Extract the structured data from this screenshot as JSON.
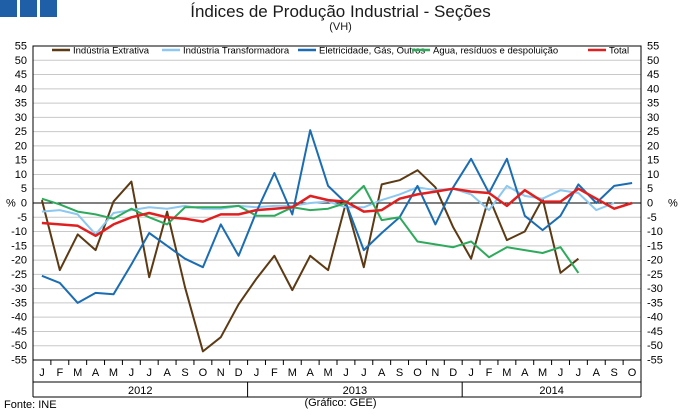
{
  "header": {
    "title": "Índices de Produção Industrial - Seções",
    "subtitle": "(VH)"
  },
  "footer": {
    "source": "Fonte: INE",
    "credit": "(Gráfico: GEE)"
  },
  "colors": {
    "logo": "#1f5fa8",
    "grid": "#c8c8c8",
    "axis": "#000000"
  },
  "chart_data": {
    "type": "line",
    "title": "Índices de Produção Industrial - Seções",
    "subtitle": "(VH)",
    "ylabel_left": "%",
    "ylabel_right": "%",
    "ylim": [
      -55,
      55
    ],
    "yticks": [
      55,
      50,
      45,
      40,
      35,
      30,
      25,
      20,
      15,
      10,
      5,
      0,
      -5,
      -10,
      -15,
      -20,
      -25,
      -30,
      -35,
      -40,
      -45,
      -50,
      -55
    ],
    "grid": true,
    "legend_position": "top",
    "x": [
      "J",
      "F",
      "M",
      "A",
      "M",
      "J",
      "J",
      "A",
      "S",
      "O",
      "N",
      "D",
      "J",
      "F",
      "M",
      "A",
      "M",
      "J",
      "J",
      "A",
      "S",
      "O",
      "N",
      "D",
      "J",
      "F",
      "M",
      "A",
      "M",
      "J",
      "J",
      "A",
      "S",
      "O"
    ],
    "years": [
      {
        "label": "2012",
        "start": 0,
        "end": 11
      },
      {
        "label": "2013",
        "start": 12,
        "end": 23
      },
      {
        "label": "2014",
        "start": 24,
        "end": 33
      }
    ],
    "series": [
      {
        "name": "Indústria Extrativa",
        "color": "#5c3a14",
        "values": [
          1,
          -23.5,
          -11,
          -16.5,
          0.5,
          7.5,
          -26,
          -3,
          -29.5,
          -52,
          -47,
          -35.5,
          -26.5,
          -18.5,
          -30.5,
          -18.5,
          -23.5,
          0,
          -22.5,
          6.5,
          8,
          11.5,
          5.5,
          -8.5,
          -19.5,
          2,
          -13,
          -10,
          1.5,
          -24.5,
          -19.5,
          null,
          null,
          null
        ]
      },
      {
        "name": "Indústria Transformadora",
        "color": "#8cc8f0",
        "values": [
          -3,
          -2.5,
          -4,
          -11,
          -3.5,
          -2.5,
          -1.5,
          -2,
          -1,
          -2,
          -2,
          -1,
          -1.5,
          -1,
          -1,
          0,
          0.5,
          -1.5,
          -1.5,
          1,
          3,
          5.5,
          4.5,
          5,
          3,
          -2.5,
          6,
          2.5,
          1.5,
          4.5,
          3.5,
          -2.5,
          0,
          null
        ]
      },
      {
        "name": "Eletricidade, Gás, Outros",
        "color": "#1b6db3",
        "values": [
          -25.5,
          -28,
          -35,
          -31.5,
          -32,
          -21.5,
          -10.5,
          -15,
          -19.5,
          -22.5,
          -7.5,
          -18.5,
          -3,
          10.5,
          -4,
          25.5,
          6,
          0,
          -16.5,
          -10.5,
          -5,
          6,
          -7.5,
          5.5,
          15.5,
          3.5,
          15.5,
          -4.5,
          -9.5,
          -4.5,
          6.5,
          0,
          6,
          7
        ]
      },
      {
        "name": "Água, resíduos e despoluição",
        "color": "#2eaa5c",
        "values": [
          1.5,
          -0.5,
          -3,
          -4,
          -5.5,
          -2,
          -5,
          -7.5,
          -1.5,
          -1.5,
          -1.5,
          -1,
          -4.5,
          -4.5,
          -1.5,
          -2.5,
          -2,
          0,
          6,
          -6,
          -5,
          -13.5,
          -14.5,
          -15.5,
          -13.5,
          -19,
          -15.5,
          -16.5,
          -17.5,
          -15.5,
          -24.5,
          null,
          null,
          null
        ]
      },
      {
        "name": "Total",
        "color": "#e02020",
        "values": [
          -7,
          -7.5,
          -8,
          -11.5,
          -7.5,
          -5,
          -3.5,
          -5,
          -5.5,
          -6.5,
          -4,
          -4,
          -2.5,
          -2,
          -1.5,
          2.5,
          1,
          0.5,
          -3,
          -2.5,
          1.5,
          3,
          4,
          5,
          4,
          3.5,
          -1,
          4.5,
          0.5,
          0.5,
          5,
          1.5,
          -2,
          0
        ]
      }
    ]
  }
}
